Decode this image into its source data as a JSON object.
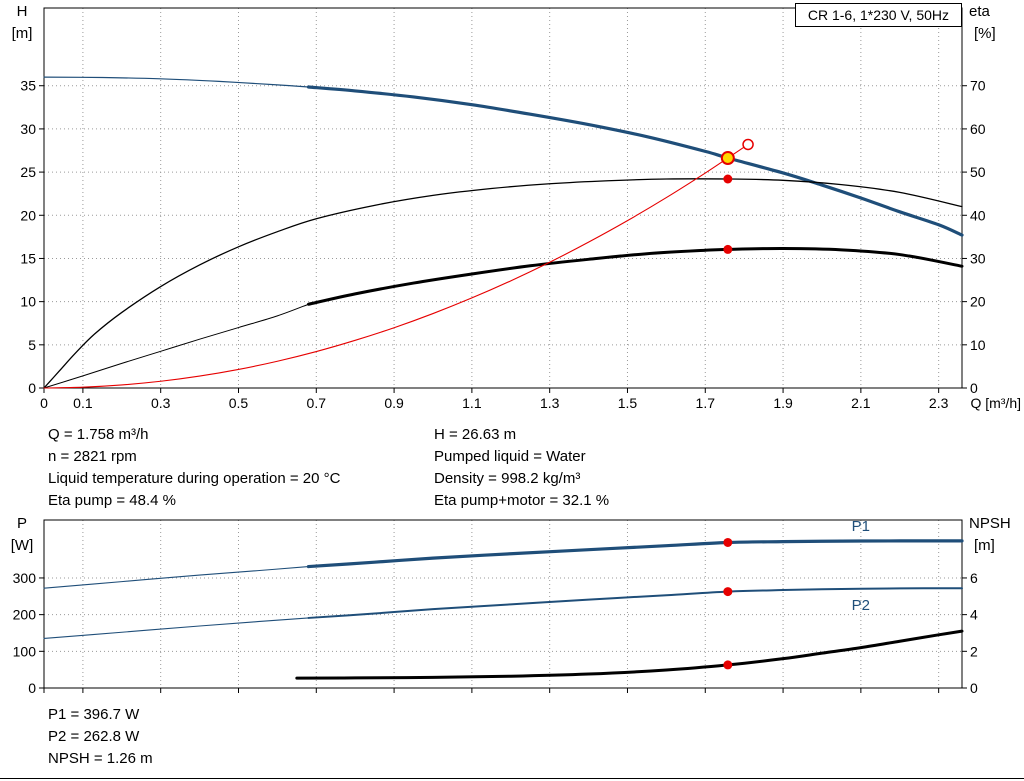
{
  "title_box": "CR 1-6, 1*230 V, 50Hz",
  "colors": {
    "curve_blue": "#1f4e79",
    "curve_black": "#000000",
    "curve_red": "#e60000",
    "duty_fill": "#ffd800",
    "grid": "#9a9a9a"
  },
  "info_top": {
    "left": [
      "Q = 1.758 m³/h",
      "n = 2821 rpm",
      "Liquid temperature during operation = 20 °C",
      "Eta pump = 48.4 %"
    ],
    "right": [
      "H = 26.63 m",
      "Pumped liquid = Water",
      "Density = 998.2 kg/m³",
      "Eta pump+motor = 32.1 %"
    ]
  },
  "info_bottom": [
    "P1 = 396.7 W",
    "P2 = 262.8 W",
    "NPSH = 1.26 m"
  ],
  "chart_data": [
    {
      "type": "line",
      "name": "qh-eta-chart",
      "title": "CR 1-6, 1*230 V, 50Hz",
      "x_axis": {
        "label": "Q [m³/h]",
        "min": 0,
        "max": 2.36,
        "ticks": [
          0,
          0.1,
          0.3,
          0.5,
          0.7,
          0.9,
          1.1,
          1.3,
          1.5,
          1.7,
          1.9,
          2.1,
          2.3
        ],
        "show_labels": true
      },
      "y_left": {
        "name": "H",
        "unit": "[m]",
        "min": 0,
        "max": 44,
        "ticks": [
          0,
          5,
          10,
          15,
          20,
          25,
          30,
          35
        ]
      },
      "y_right": {
        "name": "eta",
        "unit": "[%]",
        "min": 0,
        "max": 88,
        "ticks": [
          0,
          10,
          20,
          30,
          40,
          50,
          60,
          70
        ]
      },
      "grid": true,
      "series": [
        {
          "name": "pump-curve-thin",
          "axis": "left",
          "color": "#1f4e79",
          "width": 1.2,
          "points": [
            [
              0,
              36.0
            ],
            [
              0.15,
              35.95
            ],
            [
              0.3,
              35.8
            ],
            [
              0.45,
              35.5
            ],
            [
              0.6,
              35.1
            ],
            [
              0.68,
              34.85
            ]
          ]
        },
        {
          "name": "pump-curve",
          "axis": "left",
          "color": "#1f4e79",
          "width": 3.2,
          "points": [
            [
              0.68,
              34.85
            ],
            [
              0.8,
              34.4
            ],
            [
              0.95,
              33.7
            ],
            [
              1.1,
              32.8
            ],
            [
              1.25,
              31.7
            ],
            [
              1.4,
              30.5
            ],
            [
              1.55,
              29.1
            ],
            [
              1.7,
              27.4
            ],
            [
              1.758,
              26.63
            ],
            [
              1.9,
              24.9
            ],
            [
              2.0,
              23.5
            ],
            [
              2.1,
              22.0
            ],
            [
              2.2,
              20.4
            ],
            [
              2.3,
              18.9
            ],
            [
              2.36,
              17.7
            ]
          ]
        },
        {
          "name": "eta-pump-curve",
          "axis": "right",
          "color": "#000000",
          "width": 1.3,
          "points": [
            [
              0,
              0
            ],
            [
              0.04,
              4
            ],
            [
              0.08,
              8
            ],
            [
              0.13,
              12.5
            ],
            [
              0.2,
              17.5
            ],
            [
              0.3,
              23.5
            ],
            [
              0.4,
              28.5
            ],
            [
              0.5,
              32.7
            ],
            [
              0.6,
              36.2
            ],
            [
              0.7,
              39.2
            ],
            [
              0.85,
              42.3
            ],
            [
              1.0,
              44.6
            ],
            [
              1.15,
              46.2
            ],
            [
              1.3,
              47.3
            ],
            [
              1.45,
              48.0
            ],
            [
              1.6,
              48.4
            ],
            [
              1.758,
              48.4
            ],
            [
              1.9,
              48.1
            ],
            [
              2.05,
              47.1
            ],
            [
              2.2,
              45.3
            ],
            [
              2.36,
              42.0
            ]
          ]
        },
        {
          "name": "eta-pump-motor-thin",
          "axis": "right",
          "color": "#000000",
          "width": 1,
          "points": [
            [
              0,
              0
            ],
            [
              0.1,
              2.8
            ],
            [
              0.2,
              5.7
            ],
            [
              0.3,
              8.5
            ],
            [
              0.4,
              11.3
            ],
            [
              0.5,
              14.0
            ],
            [
              0.6,
              16.7
            ],
            [
              0.68,
              19.4
            ]
          ]
        },
        {
          "name": "eta-pump-motor-curve",
          "axis": "right",
          "color": "#000000",
          "width": 3,
          "points": [
            [
              0.68,
              19.4
            ],
            [
              0.8,
              21.8
            ],
            [
              0.95,
              24.3
            ],
            [
              1.1,
              26.4
            ],
            [
              1.25,
              28.3
            ],
            [
              1.4,
              29.8
            ],
            [
              1.55,
              31.1
            ],
            [
              1.7,
              31.9
            ],
            [
              1.758,
              32.1
            ],
            [
              1.9,
              32.3
            ],
            [
              2.05,
              32.0
            ],
            [
              2.2,
              30.9
            ],
            [
              2.36,
              28.2
            ]
          ]
        },
        {
          "name": "system-curve",
          "axis": "left",
          "color": "#e60000",
          "width": 1.1,
          "points": [
            [
              0,
              0
            ],
            [
              0.1,
              0.09
            ],
            [
              0.2,
              0.35
            ],
            [
              0.3,
              0.78
            ],
            [
              0.4,
              1.38
            ],
            [
              0.5,
              2.15
            ],
            [
              0.6,
              3.1
            ],
            [
              0.7,
              4.22
            ],
            [
              0.8,
              5.52
            ],
            [
              0.9,
              6.98
            ],
            [
              1.0,
              8.62
            ],
            [
              1.1,
              10.43
            ],
            [
              1.2,
              12.41
            ],
            [
              1.3,
              14.56
            ],
            [
              1.4,
              16.89
            ],
            [
              1.5,
              19.38
            ],
            [
              1.6,
              22.05
            ],
            [
              1.7,
              24.89
            ],
            [
              1.758,
              26.63
            ],
            [
              1.81,
              28.2
            ]
          ]
        }
      ],
      "markers": [
        {
          "name": "open-duty-point",
          "x": 1.81,
          "y": 28.2,
          "axis": "left",
          "style": "open"
        },
        {
          "name": "duty-point",
          "x": 1.758,
          "y": 26.63,
          "axis": "left",
          "style": "duty"
        },
        {
          "name": "eta-pump-marker",
          "x": 1.758,
          "y": 48.4,
          "axis": "right",
          "style": "dot"
        },
        {
          "name": "eta-pump-motor-marker",
          "x": 1.758,
          "y": 32.1,
          "axis": "right",
          "style": "dot"
        }
      ],
      "annotations": []
    },
    {
      "type": "line",
      "name": "power-npsh-chart",
      "title": "",
      "x_axis": {
        "label": "",
        "min": 0,
        "max": 2.36,
        "ticks": [
          0,
          0.1,
          0.3,
          0.5,
          0.7,
          0.9,
          1.1,
          1.3,
          1.5,
          1.7,
          1.9,
          2.1,
          2.3
        ],
        "show_labels": false
      },
      "y_left": {
        "name": "P",
        "unit": "[W]",
        "min": 0,
        "max": 458,
        "ticks": [
          0,
          100,
          200,
          300
        ]
      },
      "y_right": {
        "name": "NPSH",
        "unit": "[m]",
        "min": 0,
        "max": 9.16,
        "ticks": [
          0,
          2,
          4,
          6
        ]
      },
      "grid": true,
      "series": [
        {
          "name": "p1-curve-thin",
          "axis": "left",
          "color": "#1f4e79",
          "width": 1.1,
          "points": [
            [
              0,
              272
            ],
            [
              0.2,
              290
            ],
            [
              0.4,
              308
            ],
            [
              0.55,
              320
            ],
            [
              0.68,
              331
            ]
          ]
        },
        {
          "name": "p1-curve",
          "axis": "left",
          "color": "#1f4e79",
          "width": 3.2,
          "points": [
            [
              0.68,
              331
            ],
            [
              0.85,
              343
            ],
            [
              1.0,
              354
            ],
            [
              1.2,
              366
            ],
            [
              1.4,
              377
            ],
            [
              1.6,
              388
            ],
            [
              1.758,
              396.7
            ],
            [
              1.9,
              399
            ],
            [
              2.05,
              400.5
            ],
            [
              2.2,
              401
            ],
            [
              2.36,
              401
            ]
          ]
        },
        {
          "name": "p2-curve-thin",
          "axis": "left",
          "color": "#1f4e79",
          "width": 1.1,
          "points": [
            [
              0,
              135
            ],
            [
              0.2,
              152
            ],
            [
              0.4,
              169
            ],
            [
              0.55,
              181
            ],
            [
              0.68,
              191
            ]
          ]
        },
        {
          "name": "p2-curve",
          "axis": "left",
          "color": "#1f4e79",
          "width": 2,
          "points": [
            [
              0.68,
              191
            ],
            [
              0.85,
              203
            ],
            [
              1.0,
              215
            ],
            [
              1.2,
              228
            ],
            [
              1.4,
              241
            ],
            [
              1.6,
              253
            ],
            [
              1.758,
              262.8
            ],
            [
              1.9,
              267
            ],
            [
              2.05,
              270
            ],
            [
              2.2,
              271.5
            ],
            [
              2.36,
              272
            ]
          ]
        },
        {
          "name": "npsh-curve",
          "axis": "right",
          "color": "#000000",
          "width": 3,
          "points": [
            [
              0.65,
              0.54
            ],
            [
              0.8,
              0.55
            ],
            [
              1.0,
              0.58
            ],
            [
              1.2,
              0.64
            ],
            [
              1.4,
              0.76
            ],
            [
              1.6,
              0.98
            ],
            [
              1.758,
              1.26
            ],
            [
              1.9,
              1.6
            ],
            [
              2.0,
              1.9
            ],
            [
              2.1,
              2.2
            ],
            [
              2.2,
              2.55
            ],
            [
              2.3,
              2.9
            ],
            [
              2.36,
              3.1
            ]
          ]
        }
      ],
      "markers": [
        {
          "name": "p1-marker",
          "x": 1.758,
          "y": 396.7,
          "axis": "left",
          "style": "dot"
        },
        {
          "name": "p2-marker",
          "x": 1.758,
          "y": 262.8,
          "axis": "left",
          "style": "dot"
        },
        {
          "name": "npsh-marker",
          "x": 1.758,
          "y": 1.26,
          "axis": "right",
          "style": "dot"
        }
      ],
      "annotations": [
        {
          "text": "P1",
          "x": 2.1,
          "y": 428,
          "axis": "left",
          "color": "#1f4e79"
        },
        {
          "text": "P2",
          "x": 2.1,
          "y": 212,
          "axis": "left",
          "color": "#1f4e79"
        }
      ]
    }
  ]
}
